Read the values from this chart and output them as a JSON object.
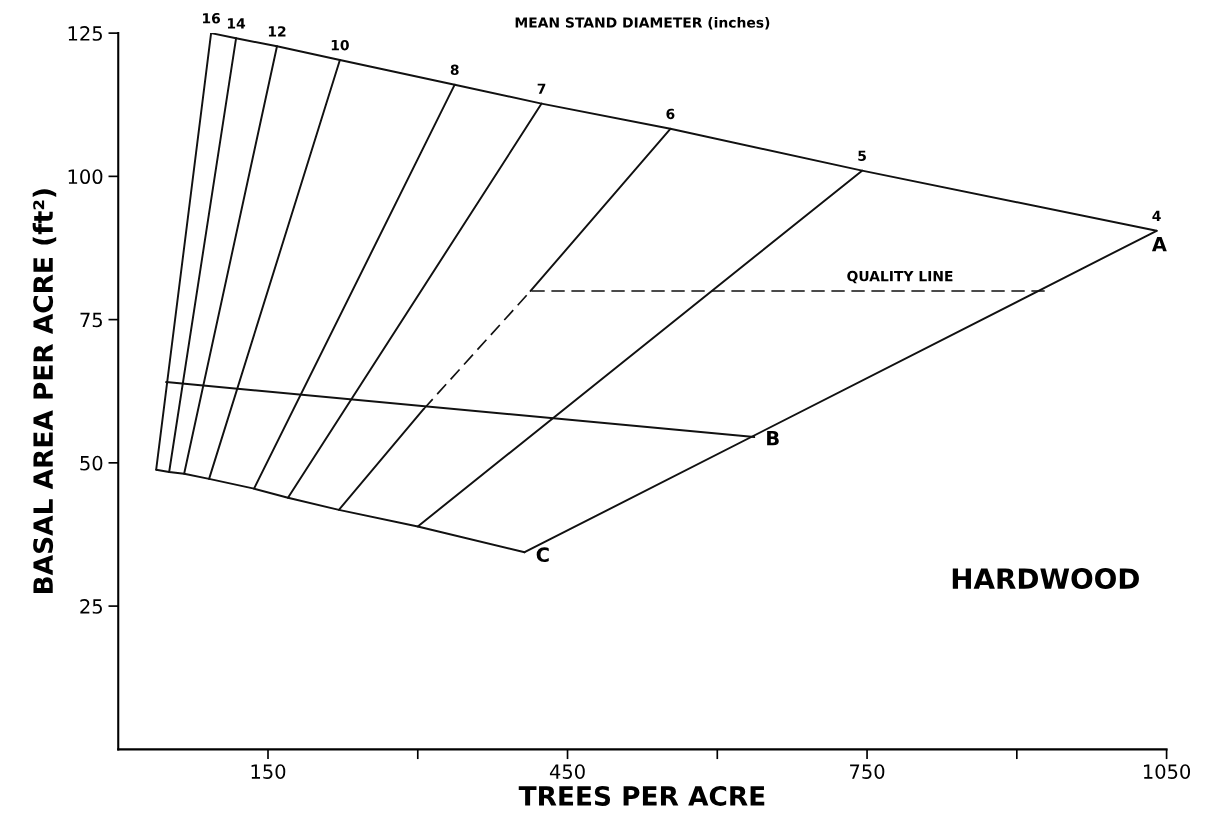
{
  "chart_data": {
    "type": "line",
    "title": "MEAN STAND DIAMETER (inches)",
    "xlabel": "TREES PER ACRE",
    "ylabel": "BASAL AREA PER ACRE (ft²)",
    "xlim": [
      0,
      1050
    ],
    "ylim": [
      0,
      125
    ],
    "xticks": [
      150,
      {
        "value": 300,
        "label": null
      },
      450,
      {
        "value": 600,
        "label": null
      },
      750,
      {
        "value": 900,
        "label": null
      },
      1050
    ],
    "yticks": [
      25,
      50,
      75,
      100,
      125
    ],
    "grid": false,
    "marker": "none",
    "series": [
      {
        "color": "#111111",
        "x": [
          93,
          118,
          159,
          222,
          337,
          424,
          553,
          745,
          1040
        ],
        "values": [
          125,
          124.1,
          122.7,
          120.3,
          116,
          112.7,
          108.3,
          101,
          90.5
        ]
      },
      {
        "color": "#111111",
        "x": [
          38,
          51,
          66,
          91,
          136,
          170,
          221,
          300,
          407
        ],
        "values": [
          48.8,
          48.4,
          48.1,
          47.2,
          45.5,
          43.9,
          41.8,
          38.9,
          34.4
        ]
      },
      {
        "color": "#111111",
        "x": [
          407,
          1040
        ],
        "values": [
          34.4,
          90.5
        ]
      },
      {
        "color": "#111111",
        "x": [
          48,
          637
        ],
        "values": [
          64.1,
          54.5
        ]
      },
      {
        "color": "#111111",
        "x": [
          38,
          93
        ],
        "values": [
          48.8,
          125
        ]
      },
      {
        "color": "#111111",
        "x": [
          51,
          118
        ],
        "values": [
          48.4,
          124.1
        ]
      },
      {
        "color": "#111111",
        "x": [
          66,
          159
        ],
        "values": [
          48.1,
          122.7
        ]
      },
      {
        "color": "#111111",
        "x": [
          91,
          222
        ],
        "values": [
          47.2,
          120.3
        ]
      },
      {
        "color": "#111111",
        "x": [
          136,
          337
        ],
        "values": [
          45.5,
          116
        ]
      },
      {
        "color": "#111111",
        "x": [
          170,
          424
        ],
        "values": [
          43.9,
          112.7
        ]
      },
      {
        "color": "#111111",
        "x": [
          413,
          553
        ],
        "values": [
          80,
          108.3
        ]
      },
      {
        "color": "#111111",
        "x": [
          221,
          306
        ],
        "values": [
          41.8,
          59.4
        ]
      },
      {
        "color": "#111111",
        "x": [
          300,
          745
        ],
        "values": [
          38.9,
          101
        ]
      },
      {
        "color": "#111111",
        "x": [
          306,
          413,
          930
        ],
        "values": [
          59.4,
          80,
          80
        ],
        "line_style": "dashed"
      }
    ],
    "annotations": [
      {
        "text": "16",
        "x": 93,
        "y": 125
      },
      {
        "text": "14",
        "x": 118,
        "y": 124.1
      },
      {
        "text": "12",
        "x": 159,
        "y": 122.7
      },
      {
        "text": "10",
        "x": 222,
        "y": 120.3
      },
      {
        "text": "8",
        "x": 337,
        "y": 116
      },
      {
        "text": "7",
        "x": 424,
        "y": 112.7
      },
      {
        "text": "6",
        "x": 553,
        "y": 108.3
      },
      {
        "text": "5",
        "x": 745,
        "y": 101
      },
      {
        "text": "4",
        "x": 1040,
        "y": 90.5
      },
      {
        "text": "A",
        "x": 1040,
        "y": 90.5
      },
      {
        "text": "B",
        "x": 637,
        "y": 54.5
      },
      {
        "text": "C",
        "x": 407,
        "y": 34.4
      },
      {
        "text": "QUALITY LINE",
        "x": 783,
        "y": 80
      },
      "HARDWOOD"
    ]
  }
}
